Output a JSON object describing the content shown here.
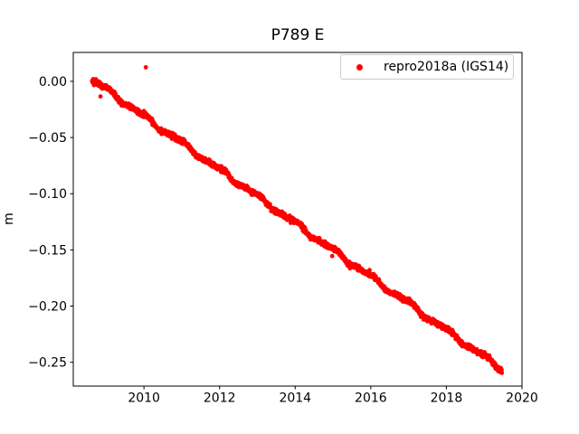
{
  "figure": {
    "title": "P789 E",
    "background_color": "#ffffff",
    "text_color": "#000000"
  },
  "axes": {
    "ylabel": "m",
    "xlabel": "",
    "spine_color": "#000000",
    "tick_color": "#000000",
    "grid": false
  },
  "legend": {
    "label": "repro2018a (IGS14)",
    "marker_icon": "red-dot-icon",
    "marker_color": "#ff0000",
    "border_color": "#cccccc",
    "background_color": "#ffffff",
    "position": "upper right"
  },
  "chart_data": {
    "type": "scatter",
    "title": "P789 E",
    "xlabel": "",
    "ylabel": "m",
    "xlim": [
      2008.13,
      2020
    ],
    "ylim": [
      -0.2712,
      0.0257
    ],
    "grid": false,
    "legend_position": "upper right",
    "x_ticks": {
      "values": [
        2010,
        2012,
        2014,
        2016,
        2018,
        2020
      ],
      "labels": [
        "2010",
        "2012",
        "2014",
        "2016",
        "2018",
        "2020"
      ]
    },
    "y_ticks": {
      "values": [
        0.0,
        -0.05,
        -0.1,
        -0.15,
        -0.2,
        -0.25
      ],
      "labels": [
        "0.00",
        "−0.05",
        "−0.10",
        "−0.15",
        "−0.20",
        "−0.25"
      ]
    },
    "series": [
      {
        "name": "repro2018a (IGS14)",
        "color": "#ff0000",
        "marker": "dot",
        "marker_radius_px": 2.4,
        "trend": {
          "start_year": 2008.63,
          "end_year": 2019.47,
          "start_value_m": 0.0015,
          "slope_m_per_year": -0.0238,
          "seasonal_annual_amp_m": 0.0018,
          "seasonal_semiannual_amp_m": 0.0008,
          "noise_sigma_m": 0.0011,
          "cadence_days": 2,
          "seed": 42
        },
        "key_points": [
          [
            2008.63,
            0.0015
          ],
          [
            2010.0,
            -0.031
          ],
          [
            2012.0,
            -0.079
          ],
          [
            2014.0,
            -0.126
          ],
          [
            2016.0,
            -0.174
          ],
          [
            2018.0,
            -0.221
          ],
          [
            2019.47,
            -0.256
          ]
        ],
        "outliers": [
          [
            2008.85,
            -0.0135
          ],
          [
            2010.05,
            0.0125
          ],
          [
            2014.98,
            -0.1555
          ]
        ]
      }
    ]
  }
}
